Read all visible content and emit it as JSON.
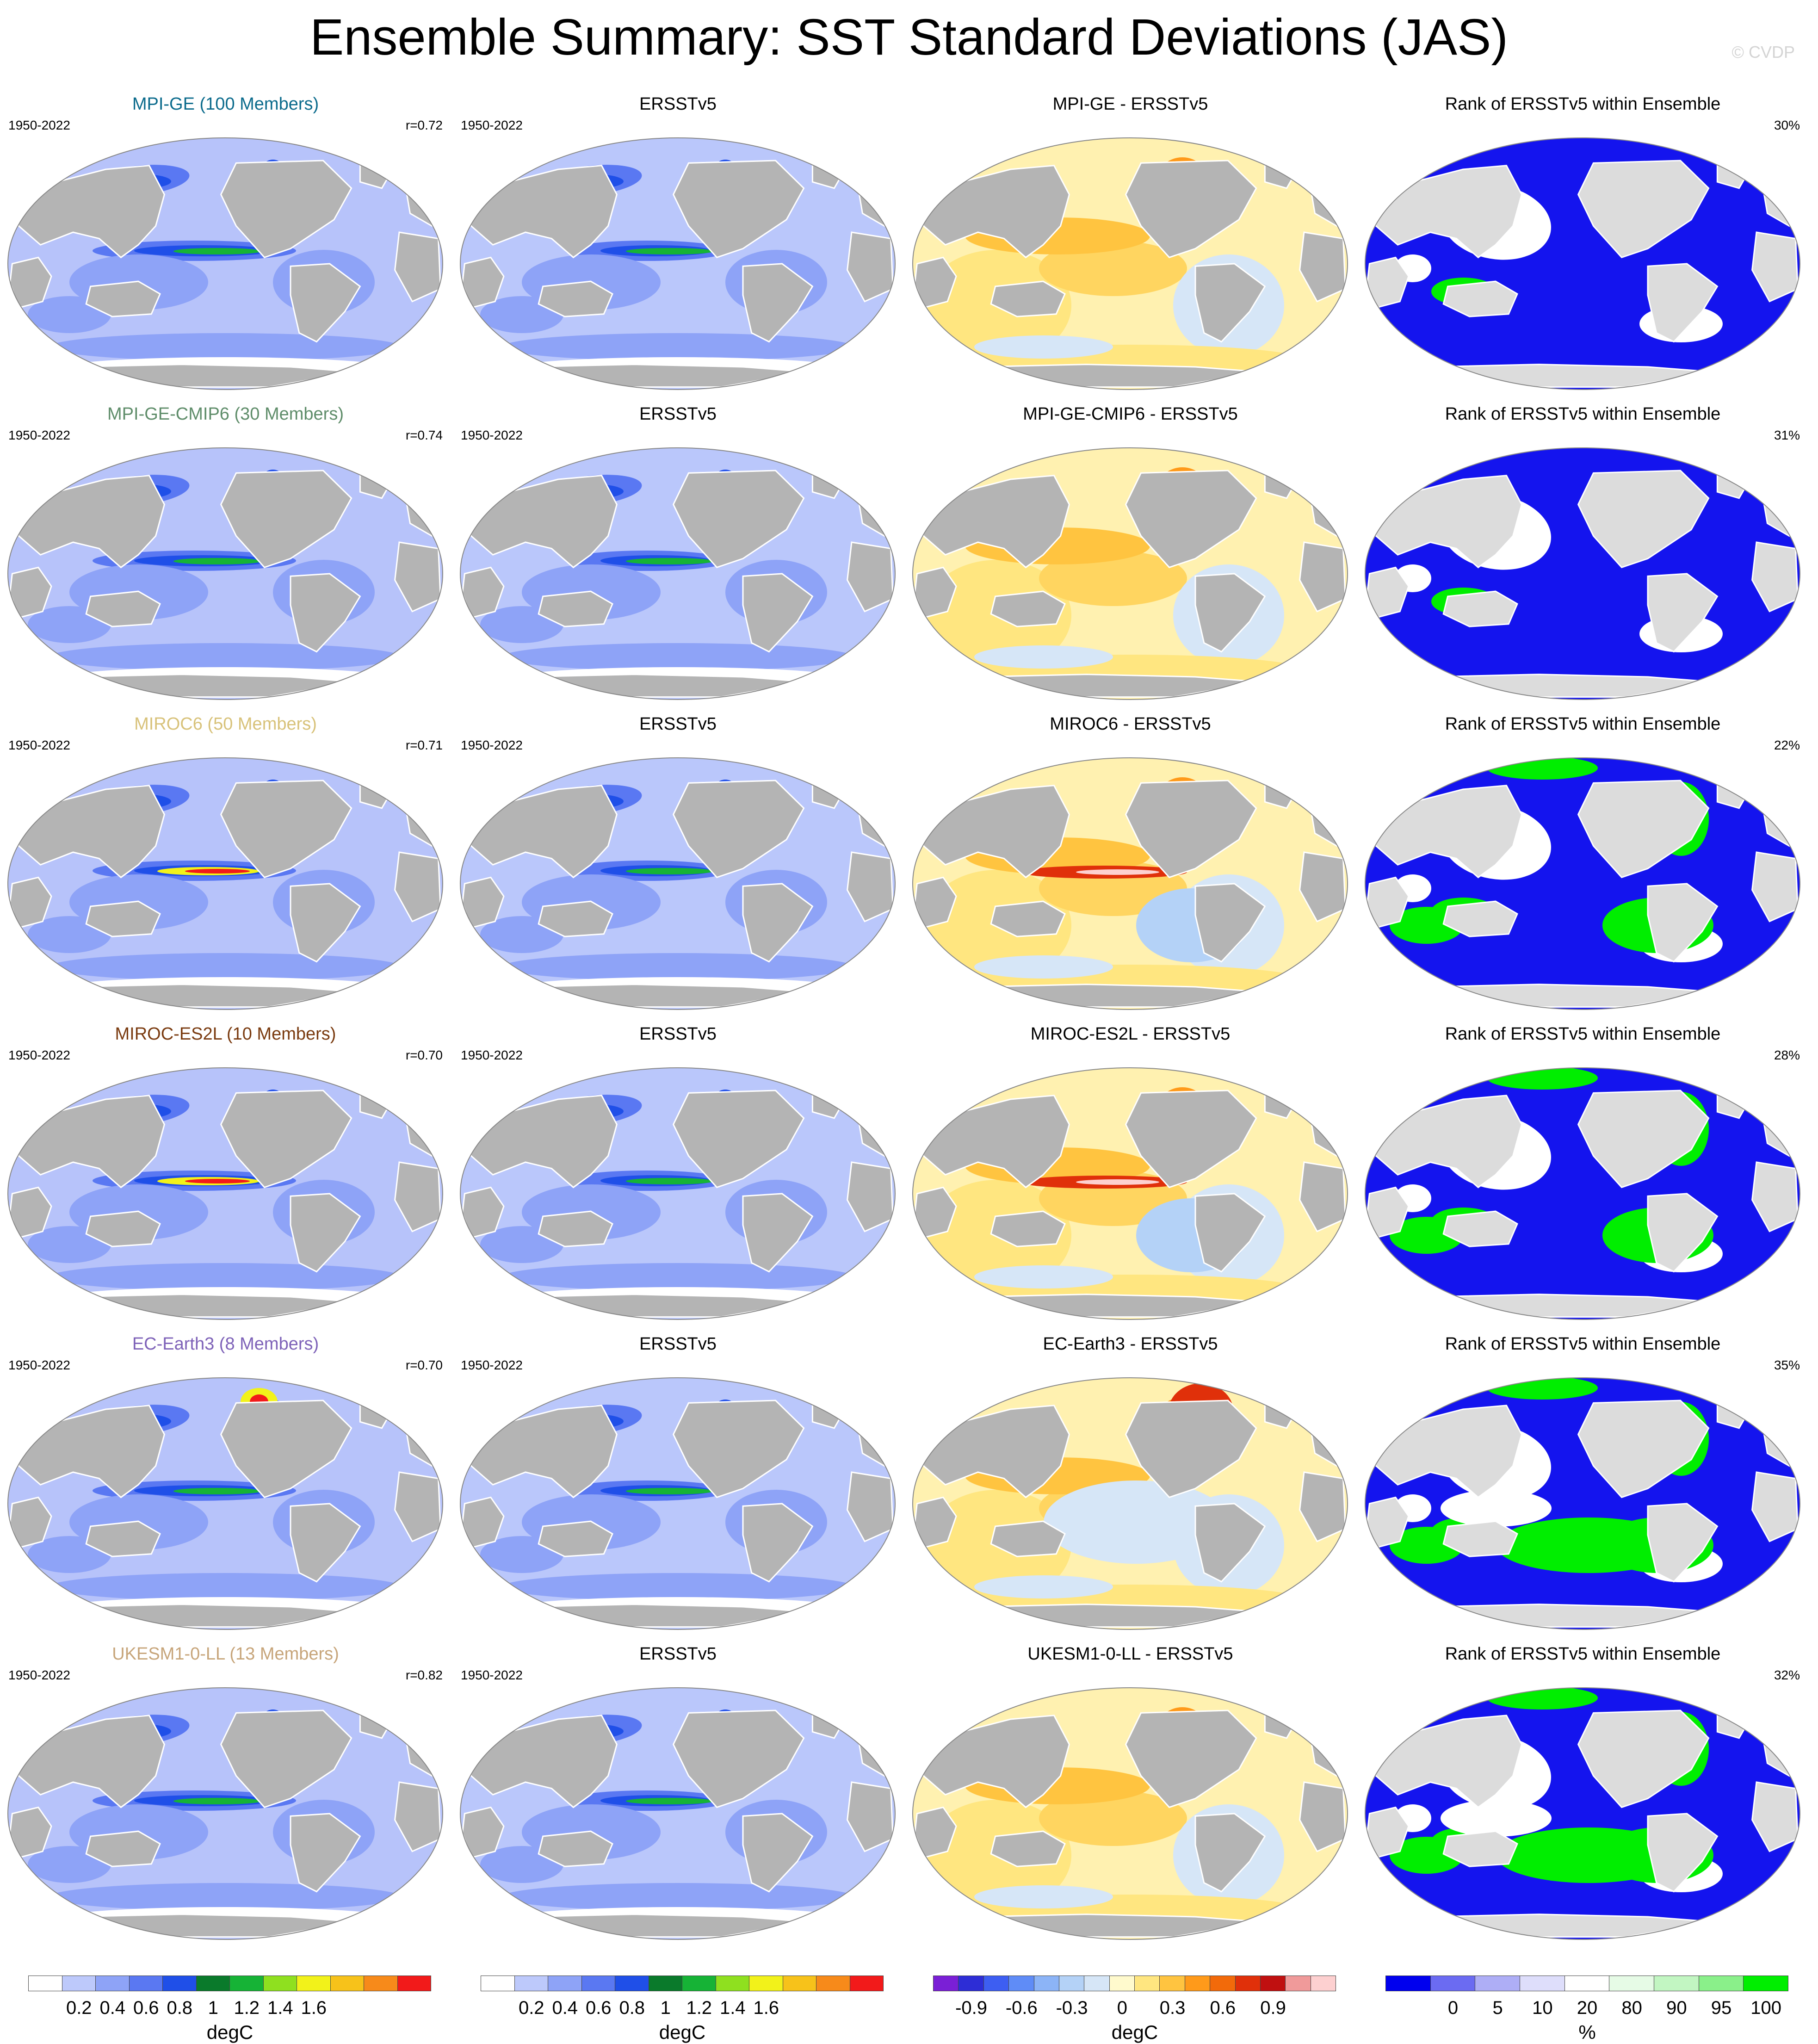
{
  "title": "Ensemble Summary: SST Standard Deviations (JAS)",
  "credit": "© CVDP",
  "period": "1950-2022",
  "obs_name": "ERSSTv5",
  "rank_title": "Rank of ERSSTv5 within Ensemble",
  "rows": [
    {
      "model": "MPI-GE (100 Members)",
      "model_color": "#0b6b8c",
      "r": "r=0.72",
      "diff_title": "MPI-GE - ERSSTv5",
      "rank_pct": "30%",
      "rank_mode": "low"
    },
    {
      "model": "MPI-GE-CMIP6 (30 Members)",
      "model_color": "#5f8d6a",
      "r": "r=0.74",
      "diff_title": "MPI-GE-CMIP6 - ERSSTv5",
      "rank_pct": "31%",
      "rank_mode": "low"
    },
    {
      "model": "MIROC6 (50 Members)",
      "model_color": "#d8c27a",
      "r": "r=0.71",
      "diff_title": "MIROC6 - ERSSTv5",
      "rank_pct": "22%",
      "rank_mode": "mixed"
    },
    {
      "model": "MIROC-ES2L (10 Members)",
      "model_color": "#7a3b10",
      "r": "r=0.70",
      "diff_title": "MIROC-ES2L - ERSSTv5",
      "rank_pct": "28%",
      "rank_mode": "mixed"
    },
    {
      "model": "EC-Earth3 (8 Members)",
      "model_color": "#7e62b8",
      "r": "r=0.70",
      "diff_title": "EC-Earth3 - ERSSTv5",
      "rank_pct": "35%",
      "rank_mode": "mixed"
    },
    {
      "model": "UKESM1-0-LL (13 Members)",
      "model_color": "#c7a57a",
      "r": "r=0.82",
      "diff_title": "UKESM1-0-LL - ERSSTv5",
      "rank_pct": "32%",
      "rank_mode": "mixed"
    }
  ],
  "colorbars": {
    "std": {
      "colors": [
        "#ffffff",
        "#bdc9fb",
        "#8ea3f7",
        "#5a78f2",
        "#1f4fe8",
        "#0a7a2b",
        "#16b336",
        "#8fe01f",
        "#f2f21a",
        "#f7c21a",
        "#f78a1a",
        "#f21a1a"
      ],
      "labels": [
        "0.2",
        "0.4",
        "0.6",
        "0.8",
        "1",
        "1.2",
        "1.4",
        "1.6"
      ],
      "units": "degC"
    },
    "diff": {
      "colors": [
        "#7a1fd6",
        "#2d2dd6",
        "#3d5ef2",
        "#5f8cf7",
        "#8cb4f7",
        "#b4d2f7",
        "#d6e6f7",
        "#fffacd",
        "#ffe680",
        "#ffc440",
        "#ff9a1a",
        "#f26a0a",
        "#e0300a",
        "#c01010",
        "#f09a9a",
        "#fdd0d0"
      ],
      "labels": [
        "-0.9",
        "-0.6",
        "-0.3",
        "0",
        "0.3",
        "0.6",
        "0.9"
      ],
      "units": "degC"
    },
    "rank": {
      "colors": [
        "#0000ee",
        "#6b6bf2",
        "#aeaef6",
        "#dedefb",
        "#ffffff",
        "#e6fbe6",
        "#c2f6c2",
        "#8af08a",
        "#00ee00"
      ],
      "labels": [
        "0",
        "5",
        "10",
        "20",
        "80",
        "90",
        "95",
        "100"
      ],
      "units": "%"
    }
  }
}
